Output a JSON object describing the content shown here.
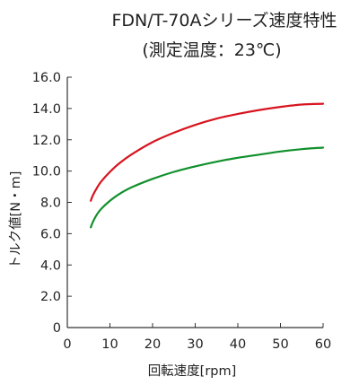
{
  "chart_data": {
    "type": "line",
    "title": "FDN/T-70Aシリーズ速度特性",
    "subtitle": "(測定温度：23℃)",
    "xlabel": "回転速度[rpm]",
    "ylabel": "トルク値[N・m]",
    "xlim": [
      0,
      60
    ],
    "ylim": [
      0,
      16
    ],
    "xticks": [
      "0",
      "10",
      "20",
      "30",
      "40",
      "50",
      "60"
    ],
    "yticks": [
      "0",
      "2.0",
      "4.0",
      "6.0",
      "8.0",
      "10.0",
      "12.0",
      "14.0",
      "16.0"
    ],
    "grid": false,
    "series": [
      {
        "color": "#d7141f",
        "x": [
          5.5,
          6,
          7,
          8,
          10,
          12,
          15,
          20,
          25,
          30,
          35,
          40,
          45,
          50,
          55,
          60
        ],
        "y": [
          8.1,
          8.45,
          8.95,
          9.35,
          9.95,
          10.45,
          11.05,
          11.85,
          12.45,
          12.95,
          13.35,
          13.65,
          13.9,
          14.1,
          14.25,
          14.3
        ]
      },
      {
        "color": "#11902c",
        "x": [
          5.5,
          6,
          7,
          8,
          10,
          12,
          15,
          20,
          25,
          30,
          35,
          40,
          45,
          50,
          55,
          60
        ],
        "y": [
          6.4,
          6.75,
          7.25,
          7.6,
          8.1,
          8.5,
          8.95,
          9.5,
          9.95,
          10.3,
          10.6,
          10.85,
          11.05,
          11.25,
          11.4,
          11.5
        ]
      }
    ]
  }
}
